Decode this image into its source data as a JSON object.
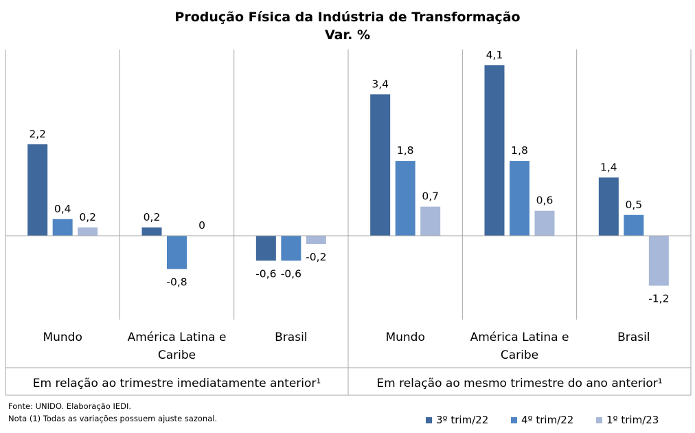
{
  "title": "Produção Física da Indústria de Transformação",
  "subtitle": "Var. %",
  "notes": {
    "source": "Fonte: UNIDO. Elaboração IEDI.",
    "note": "Nota (1) Todas as variações possuem ajuste sazonal."
  },
  "colors": {
    "series1": "#3F689C",
    "series2": "#4F85C2",
    "series3": "#A8B8D8",
    "axis": "#A6A6A6"
  },
  "chart_data": {
    "type": "bar",
    "title": "Produção Física da Indústria de Transformação",
    "subtitle": "Var. %",
    "groups": [
      "Em relação ao trimestre imediatamente anterior¹",
      "Em relação ao mesmo trimestre do ano anterior¹"
    ],
    "categories": [
      [
        "Mundo"
      ],
      [
        "América Latina e",
        "Caribe"
      ],
      [
        "Brasil"
      ],
      [
        "Mundo"
      ],
      [
        "América Latina e",
        "Caribe"
      ],
      [
        "Brasil"
      ]
    ],
    "series": [
      {
        "name": "3º trim/22",
        "values": [
          2.2,
          0.2,
          -0.6,
          3.4,
          4.1,
          1.4
        ],
        "labels": [
          "2,2",
          "0,2",
          "-0,6",
          "3,4",
          "4,1",
          "1,4"
        ]
      },
      {
        "name": "4º trim/22",
        "values": [
          0.4,
          -0.8,
          -0.6,
          1.8,
          1.8,
          0.5
        ],
        "labels": [
          "0,4",
          "-0,8",
          "-0,6",
          "1,8",
          "1,8",
          "0,5"
        ]
      },
      {
        "name": "1º trim/23",
        "values": [
          0.2,
          0,
          -0.2,
          0.7,
          0.6,
          -1.2
        ],
        "labels": [
          "0,2",
          "0",
          "-0,2",
          "0,7",
          "0,6",
          "-1,2"
        ]
      }
    ],
    "ylim": [
      -2.0,
      4.6
    ],
    "legend_position": "bottom-right",
    "grid": false
  }
}
